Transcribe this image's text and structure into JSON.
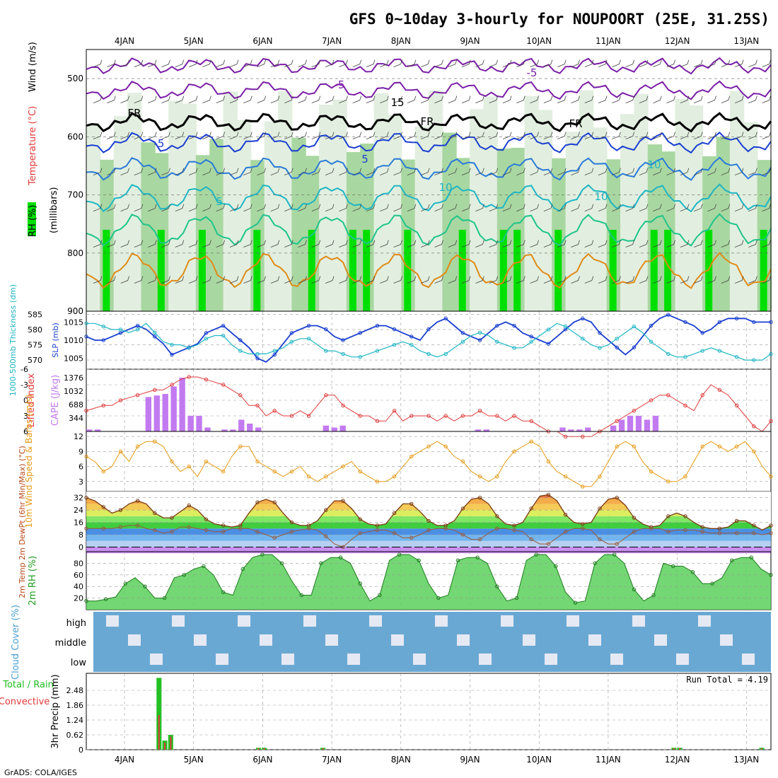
{
  "header": {
    "title": "GFS 0~10day 3-hourly for NOUPOORT (25E, 31.25S)",
    "credit": "GrADS: COLA/IGES"
  },
  "colors": {
    "rh_dark": "#00e000",
    "rh_mid": "#a9d7a1",
    "rh_light": "#e2efe0",
    "temp_pos": "#e08a17",
    "temp_neg": "#7a1fa6",
    "freezing": "#000000",
    "slp": "#1a3fd0",
    "thickness": "#1fb5c4",
    "cape": "#c27af0",
    "lifted": "#e03a3a",
    "wind": "#e59a14",
    "cloud": "#6aa8d4",
    "precip_total": "#22c022",
    "precip_conv": "#e03a3a"
  },
  "chart_data": [
    {
      "id": "upper_air",
      "type": "heatmap",
      "ylabel_parts": [
        "RH (%)",
        "Temperature (°C)",
        "Wind (m/s)",
        "(millibars)"
      ],
      "y_ticks": [
        "500",
        "600",
        "700",
        "800",
        "900"
      ],
      "ylim": [
        900,
        450
      ],
      "x_ticks": [
        "4JAN",
        "5JAN",
        "6JAN",
        "7JAN",
        "8JAN",
        "9JAN",
        "10JAN",
        "11JAN",
        "12JAN",
        "13JAN"
      ],
      "labels": [
        "FR",
        "FR",
        "FR",
        "-5",
        "-5",
        "-5",
        "5",
        "5",
        "10",
        "10",
        "10",
        "15"
      ]
    },
    {
      "id": "slp_thickness",
      "type": "line",
      "ylabel_left": "1000-500mb Thickness (dm)",
      "ylabel_right": "SLP (mb)",
      "y_ticks_left": [
        "570",
        "575",
        "580",
        "585"
      ],
      "y_ticks_right": [
        "1005",
        "1010",
        "1015"
      ],
      "series": [
        {
          "name": "SLP (mb)",
          "values": [
            1011,
            1010,
            1010,
            1011,
            1012,
            1013,
            1014,
            1013,
            1011,
            1009,
            1006,
            1007,
            1008,
            1009,
            1012,
            1013,
            1014,
            1012,
            1010,
            1008,
            1005,
            1004,
            1006,
            1009,
            1012,
            1013,
            1014,
            1014,
            1013,
            1011,
            1010,
            1011,
            1012,
            1013,
            1014,
            1014,
            1013,
            1012,
            1011,
            1010,
            1013,
            1015,
            1016,
            1014,
            1012,
            1011,
            1010,
            1012,
            1014,
            1015,
            1014,
            1012,
            1011,
            1010,
            1009,
            1011,
            1013,
            1015,
            1016,
            1015,
            1012,
            1010,
            1008,
            1006,
            1008,
            1011,
            1014,
            1016,
            1017,
            1016,
            1015,
            1014,
            1012,
            1013,
            1015,
            1016,
            1016,
            1016,
            1015,
            1015,
            1015
          ]
        },
        {
          "name": "Thickness (dm)",
          "values": [
            582,
            582,
            581,
            580,
            580,
            579,
            580,
            582,
            579,
            576,
            575,
            575,
            574,
            575,
            577,
            578,
            578,
            575,
            573,
            572,
            572,
            572,
            573,
            574,
            576,
            577,
            577,
            575,
            573,
            573,
            572,
            571,
            571,
            572,
            573,
            574,
            575,
            576,
            575,
            573,
            572,
            571,
            572,
            574,
            576,
            578,
            579,
            578,
            576,
            575,
            574,
            574,
            576,
            578,
            580,
            582,
            581,
            579,
            577,
            575,
            574,
            575,
            577,
            579,
            581,
            579,
            576,
            574,
            572,
            571,
            571,
            572,
            573,
            574,
            573,
            572,
            571,
            570,
            570,
            570,
            572
          ]
        }
      ]
    },
    {
      "id": "cape_li",
      "type": "bar",
      "ylabel_left": "Lifted Index",
      "ylabel_right": "CAPE (J/kg)",
      "y_ticks_left": [
        "-6",
        "-3",
        "0",
        "3",
        "6"
      ],
      "y_ticks_right": [
        "344",
        "688",
        "1032",
        "1376"
      ],
      "series": [
        {
          "name": "CAPE (J/kg)",
          "values": [
            50,
            50,
            0,
            0,
            0,
            0,
            0,
            880,
            920,
            960,
            1150,
            1376,
            400,
            400,
            100,
            0,
            50,
            50,
            300,
            200,
            100,
            0,
            0,
            0,
            0,
            0,
            0,
            0,
            150,
            100,
            150,
            0,
            0,
            0,
            0,
            0,
            0,
            0,
            0,
            0,
            0,
            0,
            0,
            0,
            0,
            0,
            50,
            50,
            0,
            0,
            0,
            0,
            0,
            0,
            0,
            0,
            100,
            50,
            50,
            100,
            0,
            0,
            150,
            300,
            400,
            400,
            300,
            400,
            0,
            0,
            0,
            0,
            0,
            0,
            0,
            0,
            0,
            0,
            0,
            0,
            0
          ]
        },
        {
          "name": "Lifted Index",
          "values": [
            2,
            1.5,
            1,
            1,
            0,
            -0.5,
            -1,
            -1.5,
            -2,
            -2,
            -3,
            -4,
            -4.5,
            -4.5,
            -4,
            -3.5,
            -3,
            -2,
            -1,
            1,
            1,
            3,
            2,
            3,
            3,
            2,
            3,
            1,
            -1,
            -1,
            1,
            2,
            3,
            3,
            4,
            4,
            2,
            4,
            3,
            3,
            3,
            4,
            3,
            4,
            3,
            3,
            2,
            3,
            3,
            4,
            3,
            4,
            4,
            5,
            6,
            6,
            7,
            7,
            7,
            7,
            6,
            5,
            4,
            3,
            2,
            1,
            0,
            -1,
            -1,
            0,
            1,
            2,
            -1,
            -3,
            -2,
            -1,
            1,
            3,
            5,
            6,
            4
          ]
        }
      ]
    },
    {
      "id": "wind10m",
      "type": "line",
      "ylabel": "10m Wind Speed & Barbs (m/s)",
      "y_ticks": [
        "3",
        "6",
        "9",
        "12"
      ],
      "series": [
        {
          "name": "10m Wind Speed (m/s)",
          "values": [
            8,
            7,
            5,
            6,
            9,
            7,
            10,
            11,
            11,
            10,
            7,
            5,
            6,
            4,
            7,
            6,
            5,
            8,
            10,
            10,
            7,
            6,
            5,
            4,
            5,
            6,
            4,
            3,
            4,
            5,
            6,
            7,
            5,
            4,
            3,
            3,
            4,
            6,
            8,
            9,
            10,
            11,
            10,
            8,
            7,
            5,
            4,
            3,
            4,
            7,
            9,
            10,
            11,
            10,
            7,
            5,
            4,
            3,
            2,
            2,
            4,
            7,
            10,
            11,
            10,
            7,
            5,
            4,
            3,
            3,
            4,
            7,
            10,
            11,
            10,
            9,
            10,
            11,
            9,
            6,
            4
          ]
        }
      ]
    },
    {
      "id": "temperature",
      "type": "area",
      "ylabel": "2m Temp 2m DewPt (6hr Min/Max) (°C)",
      "y_ticks": [
        "0",
        "8",
        "16",
        "24",
        "32"
      ],
      "series": [
        {
          "name": "2m Temp (°C)",
          "values": [
            32,
            30,
            26,
            22,
            24,
            28,
            30,
            28,
            22,
            19,
            19,
            23,
            27,
            24,
            18,
            15,
            14,
            13,
            14,
            22,
            29,
            31,
            29,
            22,
            16,
            14,
            14,
            17,
            24,
            30,
            30,
            25,
            18,
            15,
            14,
            15,
            22,
            28,
            28,
            23,
            17,
            14,
            14,
            17,
            25,
            31,
            32,
            28,
            20,
            15,
            14,
            16,
            25,
            33,
            34,
            30,
            21,
            16,
            15,
            16,
            25,
            31,
            32,
            27,
            19,
            15,
            13,
            14,
            20,
            22,
            20,
            16,
            13,
            12,
            12,
            13,
            17,
            17,
            14,
            11,
            14
          ]
        },
        {
          "name": "2m DewPt (°C)",
          "values": [
            12,
            12,
            12,
            12,
            13,
            14,
            14,
            12,
            11,
            9,
            10,
            13,
            13,
            12,
            11,
            10,
            10,
            12,
            12,
            12,
            10,
            8,
            6,
            8,
            10,
            11,
            12,
            11,
            7,
            2,
            0,
            5,
            9,
            10,
            11,
            11,
            9,
            6,
            6,
            8,
            11,
            12,
            12,
            11,
            8,
            5,
            5,
            9,
            12,
            12,
            11,
            10,
            5,
            2,
            2,
            6,
            10,
            12,
            12,
            11,
            5,
            2,
            2,
            6,
            10,
            12,
            12,
            12,
            10,
            11,
            11,
            11,
            10,
            9,
            9,
            9,
            9,
            9,
            9,
            8,
            9
          ]
        }
      ]
    },
    {
      "id": "rh2m",
      "type": "area",
      "ylabel": "2m RH (%)",
      "y_ticks": [
        "20",
        "40",
        "60",
        "80"
      ],
      "series": [
        {
          "name": "2m RH (%)",
          "values": [
            15,
            15,
            18,
            22,
            45,
            55,
            40,
            20,
            20,
            55,
            60,
            70,
            75,
            60,
            30,
            25,
            70,
            90,
            95,
            95,
            80,
            50,
            25,
            25,
            80,
            90,
            90,
            80,
            45,
            15,
            25,
            85,
            95,
            95,
            85,
            45,
            20,
            25,
            85,
            90,
            90,
            80,
            40,
            15,
            20,
            85,
            95,
            95,
            75,
            30,
            12,
            15,
            80,
            95,
            95,
            80,
            35,
            15,
            25,
            80,
            75,
            75,
            65,
            45,
            45,
            55,
            85,
            90,
            90,
            70,
            60
          ]
        }
      ]
    },
    {
      "id": "cloud",
      "type": "area",
      "ylabel": "Cloud Cover (%)",
      "y_ticks": [
        "high",
        "middle",
        "low"
      ],
      "levels": [
        "high",
        "middle",
        "low"
      ]
    },
    {
      "id": "precip",
      "type": "bar",
      "ylabel": "3hr Precip (mm)",
      "legend": [
        "Total / Rain",
        "Convective"
      ],
      "annotation": "Run Total = 4.19",
      "y_ticks": [
        "0",
        "0.62",
        "1.24",
        "1.86",
        "2.48"
      ],
      "ylim": [
        0,
        3.1
      ],
      "series": [
        {
          "name": "Total / Rain",
          "values": [
            0,
            0,
            0,
            0,
            0,
            0,
            0,
            0,
            0,
            0,
            0,
            0,
            3.0,
            0.38,
            0.62,
            0,
            0,
            0,
            0,
            0,
            0,
            0,
            0,
            0,
            0,
            0,
            0,
            0,
            0,
            0.08,
            0.08,
            0,
            0,
            0,
            0,
            0,
            0,
            0,
            0,
            0,
            0.08,
            0,
            0,
            0,
            0,
            0,
            0,
            0,
            0,
            0,
            0,
            0,
            0,
            0,
            0,
            0,
            0,
            0,
            0,
            0,
            0,
            0,
            0,
            0,
            0,
            0,
            0,
            0,
            0,
            0,
            0,
            0,
            0,
            0,
            0,
            0,
            0,
            0,
            0,
            0,
            0,
            0,
            0,
            0,
            0,
            0,
            0,
            0,
            0,
            0,
            0,
            0,
            0,
            0,
            0,
            0,
            0,
            0,
            0,
            0,
            0.08,
            0.08,
            0,
            0,
            0,
            0,
            0,
            0,
            0,
            0,
            0,
            0,
            0,
            0,
            0,
            0.08,
            0
          ]
        },
        {
          "name": "Convective",
          "values": [
            0,
            0,
            0,
            0,
            0,
            0,
            0,
            0,
            0,
            0,
            0,
            0,
            1.45,
            0.3,
            0.55,
            0,
            0,
            0,
            0,
            0,
            0,
            0,
            0,
            0,
            0,
            0,
            0,
            0,
            0,
            0.06,
            0.06,
            0,
            0,
            0,
            0,
            0,
            0,
            0,
            0,
            0,
            0.06,
            0,
            0,
            0,
            0,
            0,
            0,
            0,
            0,
            0,
            0,
            0,
            0,
            0,
            0,
            0,
            0,
            0,
            0,
            0,
            0,
            0,
            0,
            0,
            0,
            0,
            0,
            0,
            0,
            0,
            0,
            0,
            0,
            0,
            0,
            0,
            0,
            0,
            0,
            0,
            0,
            0,
            0,
            0,
            0,
            0,
            0,
            0,
            0,
            0,
            0,
            0,
            0,
            0,
            0,
            0,
            0,
            0,
            0,
            0,
            0.06,
            0.06,
            0,
            0,
            0,
            0,
            0,
            0,
            0,
            0,
            0,
            0,
            0,
            0,
            0,
            0.06,
            0
          ]
        }
      ]
    }
  ]
}
